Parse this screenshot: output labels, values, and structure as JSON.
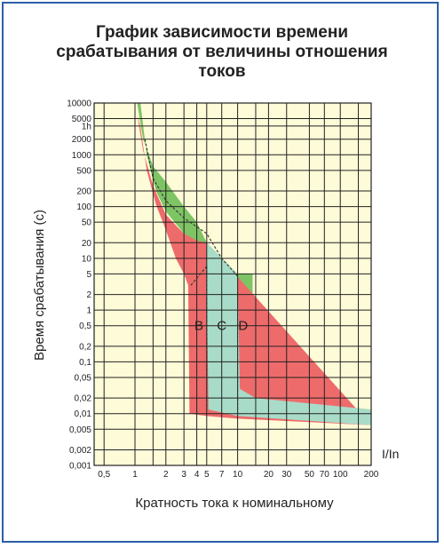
{
  "chart_data": {
    "type": "area",
    "title_lines": [
      "График зависимости времени",
      "срабатывания от величины отношения",
      "токов"
    ],
    "xlabel": "Кратность тока к номинальному",
    "ylabel": "Время срабатывания (с)",
    "x_unit_label": "I/In",
    "x_scale": "log",
    "y_scale": "log",
    "xlim": [
      0.4,
      200
    ],
    "ylim": [
      0.001,
      10000
    ],
    "grid": true,
    "x_ticks": [
      {
        "v": 0.5,
        "t": "0,5"
      },
      {
        "v": 1,
        "t": "1"
      },
      {
        "v": 2,
        "t": "2"
      },
      {
        "v": 3,
        "t": "3"
      },
      {
        "v": 4,
        "t": "4"
      },
      {
        "v": 5,
        "t": "5"
      },
      {
        "v": 7,
        "t": "7"
      },
      {
        "v": 10,
        "t": "10"
      },
      {
        "v": 20,
        "t": "20"
      },
      {
        "v": 30,
        "t": "30"
      },
      {
        "v": 50,
        "t": "50"
      },
      {
        "v": 70,
        "t": "70"
      },
      {
        "v": 100,
        "t": "100"
      },
      {
        "v": 200,
        "t": "200"
      }
    ],
    "x_grid": [
      0.5,
      1,
      1.5,
      2,
      3,
      4,
      5,
      7,
      10,
      15,
      20,
      30,
      50,
      70,
      100,
      150,
      200
    ],
    "y_ticks": [
      {
        "v": 10000,
        "t": "10000"
      },
      {
        "v": 5000,
        "t": "5000"
      },
      {
        "v": 3600,
        "t": "1h"
      },
      {
        "v": 2000,
        "t": "2000"
      },
      {
        "v": 1000,
        "t": "1000"
      },
      {
        "v": 500,
        "t": "500"
      },
      {
        "v": 200,
        "t": "200"
      },
      {
        "v": 100,
        "t": "100"
      },
      {
        "v": 50,
        "t": "50"
      },
      {
        "v": 20,
        "t": "20"
      },
      {
        "v": 10,
        "t": "10"
      },
      {
        "v": 5,
        "t": "5"
      },
      {
        "v": 2,
        "t": "2"
      },
      {
        "v": 1,
        "t": "1"
      },
      {
        "v": 0.5,
        "t": "0,5"
      },
      {
        "v": 0.2,
        "t": "0,2"
      },
      {
        "v": 0.1,
        "t": "0,1"
      },
      {
        "v": 0.05,
        "t": "0,05"
      },
      {
        "v": 0.02,
        "t": "0,02"
      },
      {
        "v": 0.01,
        "t": "0,01"
      },
      {
        "v": 0.005,
        "t": "0,005"
      },
      {
        "v": 0.002,
        "t": "0,002"
      },
      {
        "v": 0.001,
        "t": "0,001"
      }
    ],
    "series": [
      {
        "name": "B",
        "color": "#ee6b6b",
        "upper": [
          [
            1.05,
            6000
          ],
          [
            1.2,
            1200
          ],
          [
            1.5,
            250
          ],
          [
            2,
            70
          ],
          [
            2.6,
            40
          ],
          [
            3,
            30
          ],
          [
            4,
            22
          ],
          [
            5,
            20
          ]
        ],
        "lower": [
          [
            1.13,
            3500
          ],
          [
            1.3,
            500
          ],
          [
            1.6,
            110
          ],
          [
            2,
            35
          ],
          [
            2.5,
            10
          ],
          [
            3,
            5
          ],
          [
            3.3,
            3
          ],
          [
            3.4,
            0.01
          ],
          [
            5,
            0.009
          ],
          [
            10,
            0.008
          ],
          [
            200,
            0.006
          ]
        ],
        "label_at": [
          4.2,
          0.5
        ]
      },
      {
        "name": "C",
        "color": "#a8dcc8",
        "upper": [
          [
            5,
            20
          ],
          [
            10,
            5
          ],
          [
            10.5,
            0.03
          ],
          [
            15,
            0.02
          ],
          [
            200,
            0.012
          ]
        ],
        "lower": [
          [
            5,
            3
          ],
          [
            5.2,
            0.012
          ],
          [
            10,
            0.009
          ],
          [
            200,
            0.006
          ]
        ],
        "label_at": [
          7,
          0.5
        ]
      },
      {
        "name": "D",
        "color": "#7ec465",
        "upper": [
          [
            1.05,
            10000
          ],
          [
            1.2,
            2000
          ],
          [
            1.5,
            600
          ],
          [
            2,
            300
          ],
          [
            3,
            100
          ],
          [
            4,
            50
          ],
          [
            5,
            20
          ],
          [
            10,
            5
          ],
          [
            14,
            5
          ],
          [
            14,
            0.03
          ],
          [
            20,
            0.02
          ],
          [
            200,
            0.012
          ]
        ],
        "lower": [
          [
            1.13,
            10000
          ],
          [
            1.3,
            1000
          ],
          [
            1.6,
            200
          ],
          [
            2,
            80
          ],
          [
            3,
            30
          ],
          [
            5,
            10
          ],
          [
            10,
            3
          ],
          [
            12,
            2
          ],
          [
            12,
            0.015
          ],
          [
            20,
            0.012
          ],
          [
            200,
            0.007
          ]
        ],
        "label_at": [
          11.3,
          0.5
        ]
      }
    ],
    "dashed": [
      [
        [
          1.25,
          2000
        ],
        [
          1.5,
          350
        ],
        [
          2,
          130
        ],
        [
          3,
          60
        ],
        [
          5,
          30
        ],
        [
          7,
          10
        ],
        [
          10,
          4.5
        ],
        [
          10,
          0.01
        ]
      ],
      [
        [
          5,
          7
        ],
        [
          5,
          0.012
        ]
      ],
      [
        [
          3.5,
          3
        ],
        [
          5,
          7
        ]
      ]
    ]
  }
}
